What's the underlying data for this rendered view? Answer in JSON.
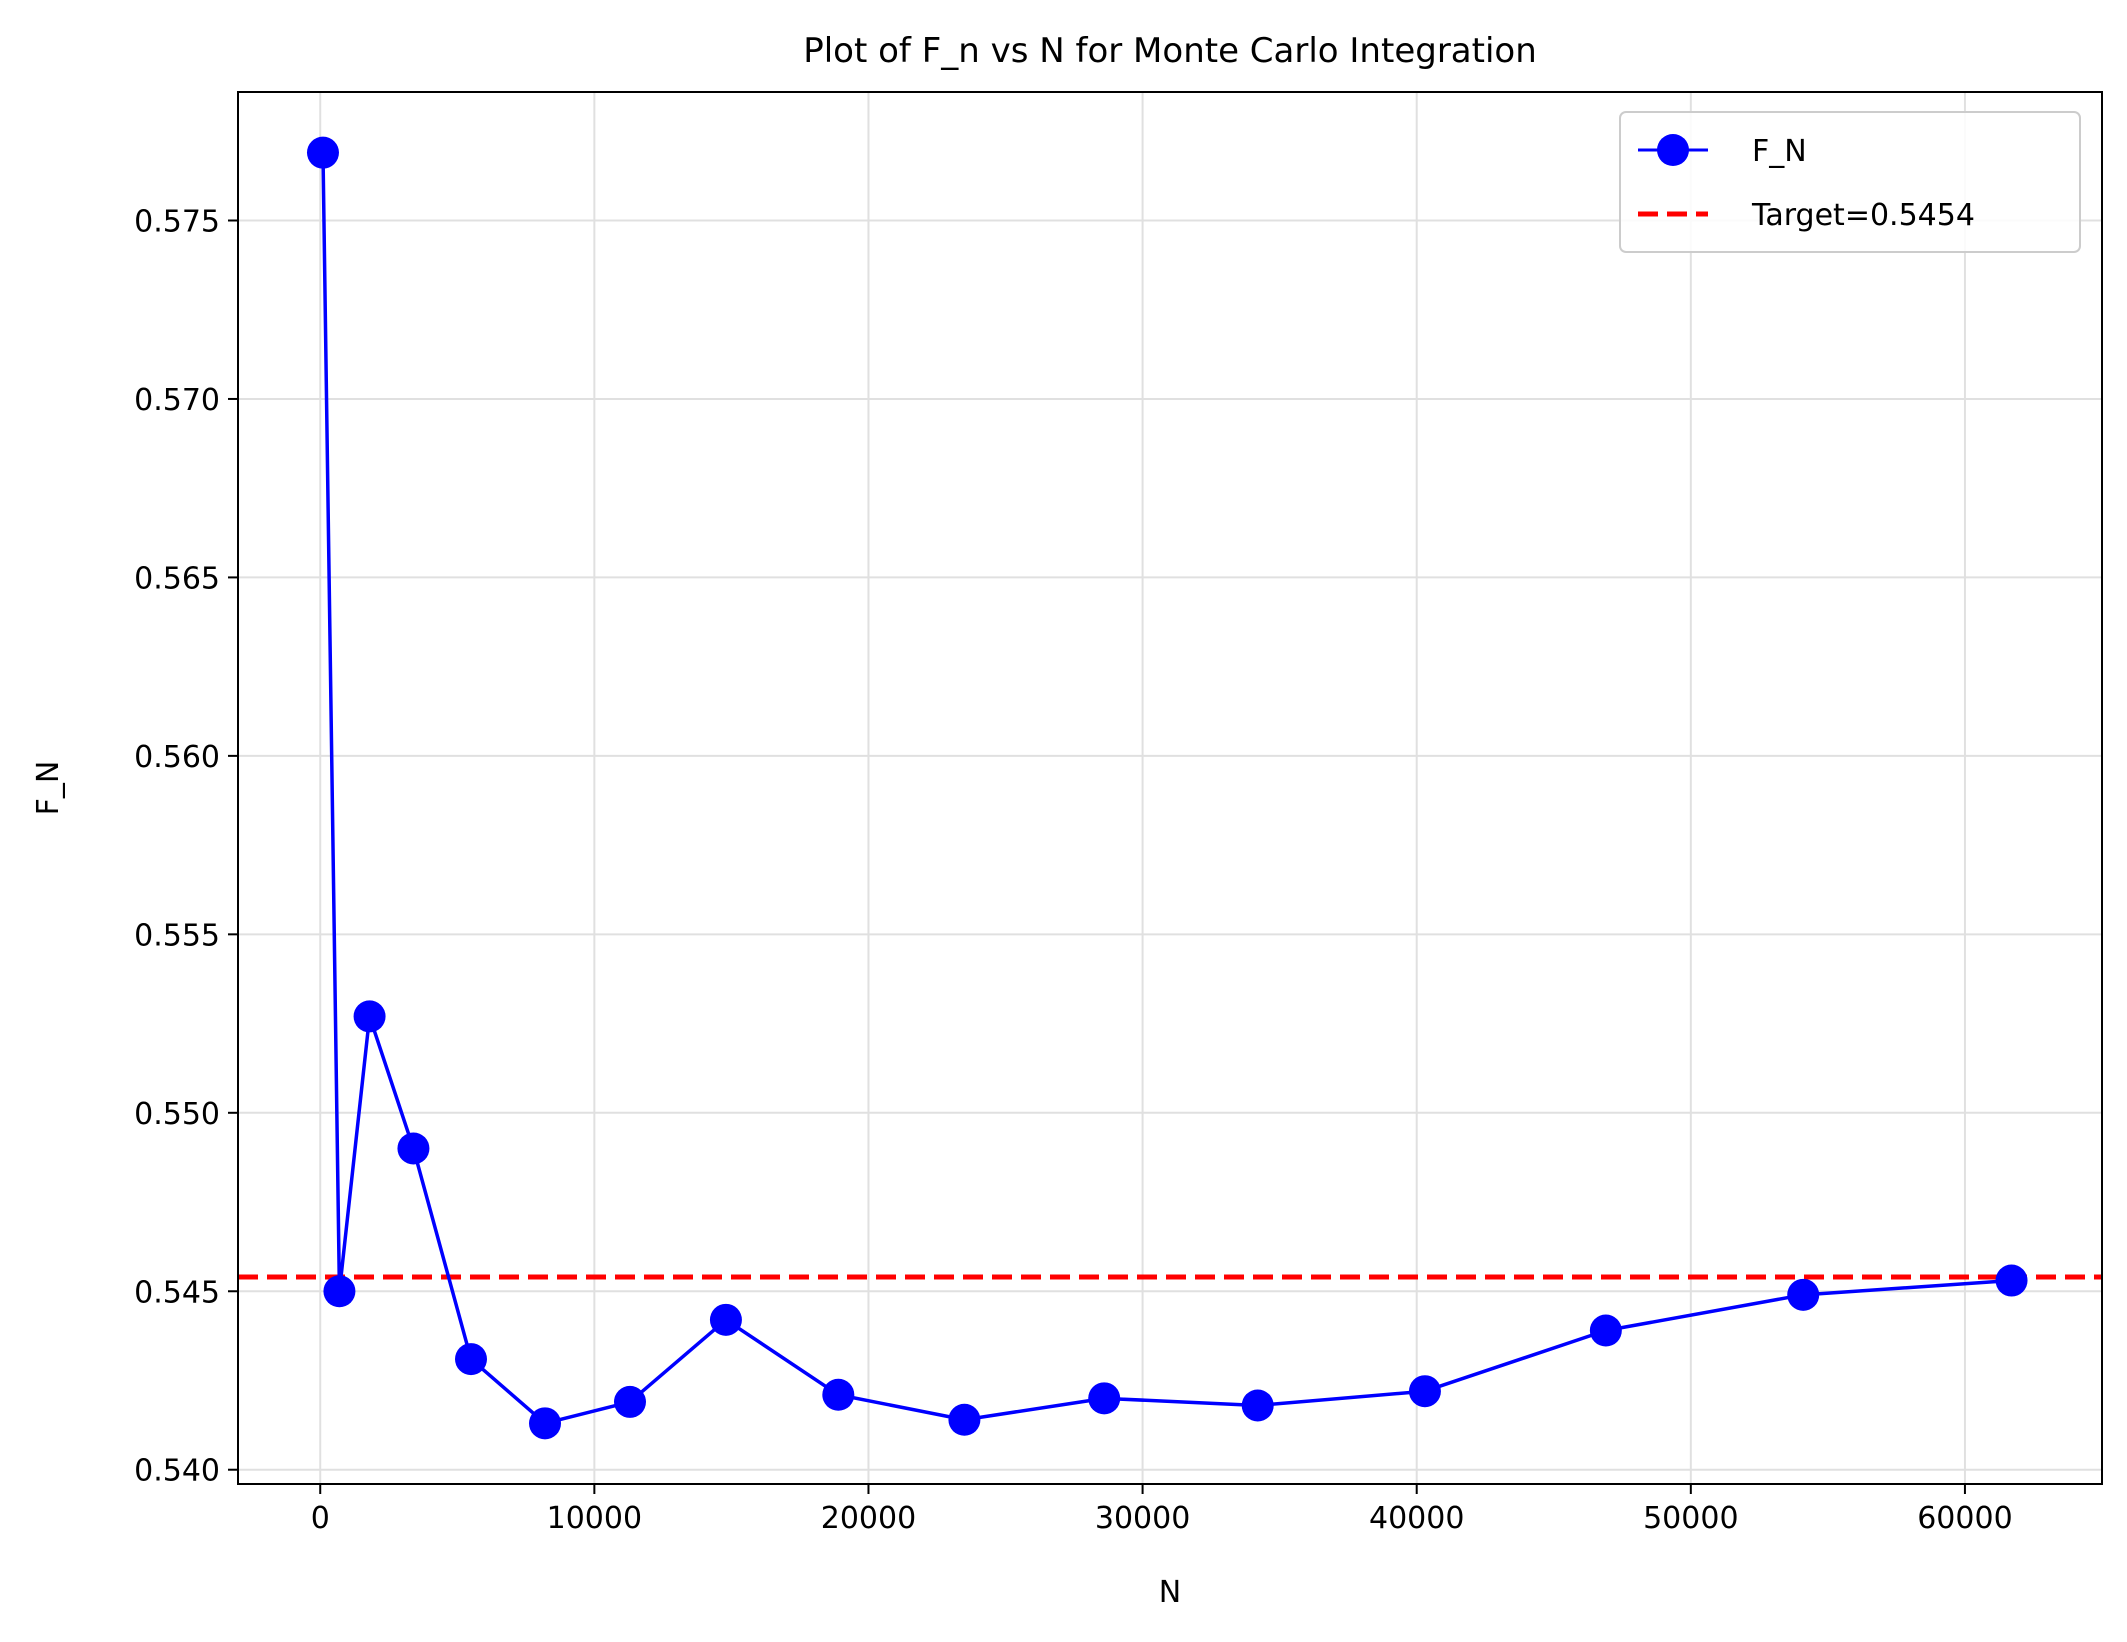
{
  "chart_data": {
    "type": "line",
    "title": "Plot of F_n vs N for Monte Carlo Integration",
    "xlabel": "N",
    "ylabel": "F_N",
    "xlim": [
      -3000,
      65000
    ],
    "ylim": [
      0.5396,
      0.5786
    ],
    "xticks": [
      0,
      10000,
      20000,
      30000,
      40000,
      50000,
      60000
    ],
    "xtick_labels": [
      "0",
      "10000",
      "20000",
      "30000",
      "40000",
      "50000",
      "60000"
    ],
    "yticks": [
      0.54,
      0.545,
      0.55,
      0.555,
      0.56,
      0.565,
      0.57,
      0.575
    ],
    "ytick_labels": [
      "0.540",
      "0.545",
      "0.550",
      "0.555",
      "0.560",
      "0.565",
      "0.570",
      "0.575"
    ],
    "grid": true,
    "legend_position": "top-right",
    "series": [
      {
        "name": "F_N",
        "color": "#0000ff",
        "marker": "circle",
        "x": [
          100,
          700,
          1800,
          3400,
          5500,
          8200,
          11300,
          14800,
          18900,
          23500,
          28600,
          34200,
          40300,
          46900,
          54100,
          61700
        ],
        "y": [
          0.5769,
          0.545,
          0.5527,
          0.549,
          0.5431,
          0.5413,
          0.5419,
          0.5442,
          0.5421,
          0.5414,
          0.542,
          0.5418,
          0.5422,
          0.5439,
          0.5449,
          0.5453
        ]
      }
    ],
    "reference_line": {
      "name": "Target=0.5454",
      "value": 0.5454,
      "color": "#ff0000",
      "style": "dashed"
    }
  }
}
